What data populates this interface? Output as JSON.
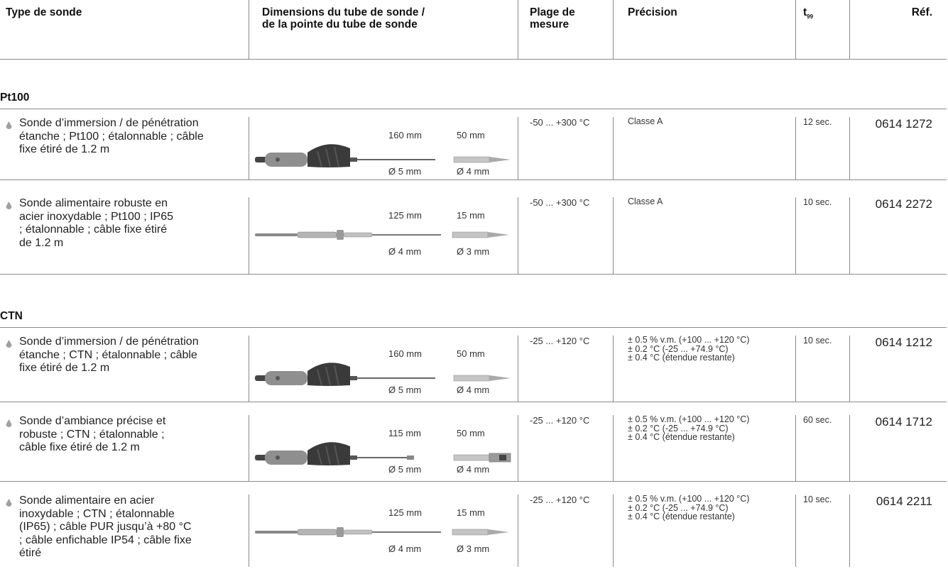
{
  "header": {
    "col_type": "Type de sonde",
    "col_dimensions_line1": "Dimensions du tube de sonde /",
    "col_dimensions_line2": "de la pointe du tube de sonde",
    "col_range_line1": "Plage de",
    "col_range_line2": "mesure",
    "col_precision": "Précision",
    "col_t99_base": "t",
    "col_t99_sub": "99",
    "col_ref": "Réf."
  },
  "groups": [
    {
      "title": "Pt100",
      "rows": [
        {
          "desc": [
            "Sonde d’immersion / de pénétration",
            "étanche ; Pt100 ; étalonnable ; câble",
            "fixe étiré de 1.2 m"
          ],
          "image": "handle-probe-icon",
          "len": "160 mm",
          "tip_len": "50 mm",
          "dia": "Ø 5 mm",
          "tip_dia": "Ø 4 mm",
          "range": "-50 ... +300 °C",
          "precision": "Classe A",
          "t99": "12 sec.",
          "ref": "0614 1272"
        },
        {
          "desc": [
            "Sonde alimentaire robuste en",
            "acier inoxydable ; Pt100 ; IP65",
            "; étalonnable ; câble fixe étiré",
            "de 1.2 m"
          ],
          "image": "steel-probe-icon",
          "len": "125 mm",
          "tip_len": "15 mm",
          "dia": "Ø 4 mm",
          "tip_dia": "Ø 3 mm",
          "range": "-50 ... +300 °C",
          "precision": "Classe A",
          "t99": "10 sec.",
          "ref": "0614 2272"
        }
      ]
    },
    {
      "title": "CTN",
      "rows": [
        {
          "desc": [
            "Sonde d’immersion / de pénétration",
            "étanche ; CTN ; étalonnable ; câble",
            "fixe étiré de 1.2 m"
          ],
          "image": "handle-probe-icon",
          "len": "160 mm",
          "tip_len": "50 mm",
          "dia": "Ø 5 mm",
          "tip_dia": "Ø 4 mm",
          "range": "-25 ... +120 °C",
          "precision": "± 0.5 % v.m. (+100 ... +120 °C)\n± 0.2 °C (-25 ... +74.9 °C)\n± 0.4 °C (étendue restante)",
          "t99": "10 sec.",
          "ref": "0614 1212"
        },
        {
          "desc": [
            "Sonde d’ambiance précise et",
            "robuste ; CTN ; étalonnable ;",
            "câble fixe étiré de 1.2 m"
          ],
          "image": "handle-air-probe-icon",
          "len": "115 mm",
          "tip_len": "50 mm",
          "dia": "Ø 5 mm",
          "tip_dia": "Ø 4 mm",
          "range": "-25 ... +120 °C",
          "precision": "± 0.5 % v.m. (+100 ... +120 °C)\n± 0.2 °C (-25 ... +74.9 °C)\n± 0.4 °C (étendue restante)",
          "t99": "60 sec.",
          "ref": "0614 1712"
        },
        {
          "desc": [
            "Sonde alimentaire en acier",
            "inoxydable ; CTN ; étalonnable",
            "(IP65) ; câble PUR jusqu’à +80 °C",
            "; câble enfichable IP54 ; câble fixe",
            "étiré"
          ],
          "image": "steel-probe-icon",
          "len": "125 mm",
          "tip_len": "15 mm",
          "dia": "Ø 4 mm",
          "tip_dia": "Ø 3 mm",
          "range": "-25 ... +120 °C",
          "precision": "± 0.5 % v.m. (+100 ... +120 °C)\n± 0.2 °C (-25 ... +74.9 °C)\n± 0.4 °C (étendue restante)",
          "t99": "10 sec.",
          "ref": "0614 2211"
        }
      ]
    }
  ],
  "colors": {
    "rule": "#8a8a8a",
    "text": "#222222",
    "bullet": "#a0a0a0"
  }
}
